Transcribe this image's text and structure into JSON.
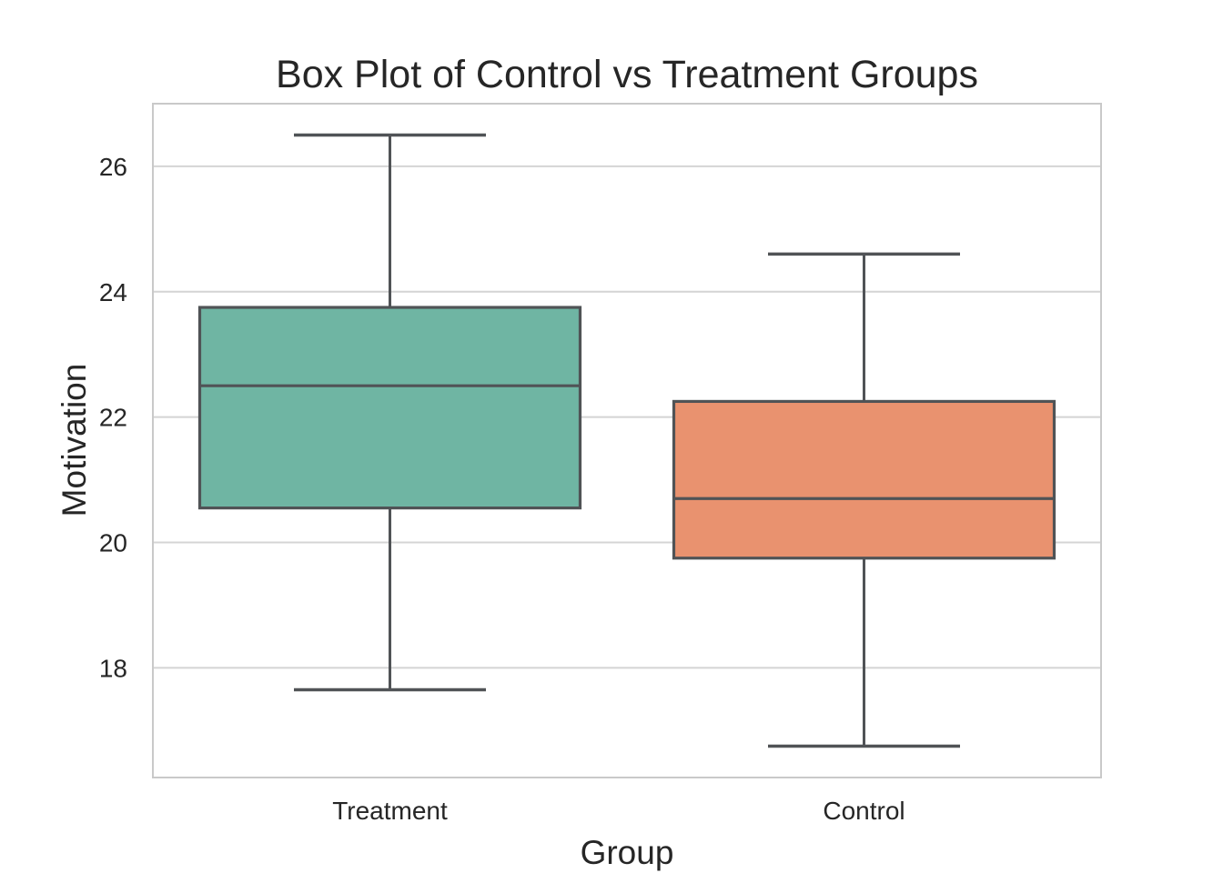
{
  "chart_data": {
    "type": "box",
    "title": "Box Plot of Control vs Treatment Groups",
    "xlabel": "Group",
    "ylabel": "Motivation",
    "categories": [
      "Treatment",
      "Control"
    ],
    "series": [
      {
        "name": "Treatment",
        "color": "#6fb5a3",
        "min": 17.65,
        "q1": 20.55,
        "median": 22.5,
        "q3": 23.75,
        "max": 26.5
      },
      {
        "name": "Control",
        "color": "#e9926f",
        "min": 16.75,
        "q1": 19.75,
        "median": 20.7,
        "q3": 22.25,
        "max": 24.6
      }
    ],
    "yticks": [
      18,
      20,
      22,
      24,
      26
    ],
    "ylim": [
      16.25,
      27.0
    ],
    "grid": true,
    "legend_position": "none",
    "orientation": "vertical",
    "line_color": "#505356",
    "grid_color": "#d4d4d4",
    "border_color": "#c9c9c9",
    "text_color": "#262626",
    "background_color": "#ffffff"
  }
}
